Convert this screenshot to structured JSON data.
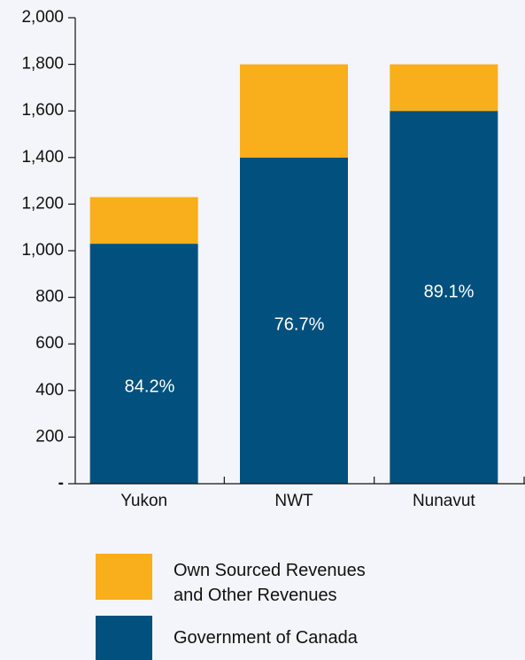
{
  "chart_data": {
    "type": "stacked_bar",
    "categories": [
      "Yukon",
      "NWT",
      "Nunavut"
    ],
    "series": [
      {
        "name": "Government of Canada",
        "color": "#01507e",
        "values": [
          1030,
          1400,
          1600
        ]
      },
      {
        "name": "Own Sourced Revenues and Other Revenues",
        "color": "#f9ae1b",
        "values": [
          200,
          400,
          200
        ]
      }
    ],
    "annotations": [
      "84.2%",
      "76.7%",
      "89.1%"
    ],
    "ylim": [
      0,
      2000
    ],
    "yticks": [
      {
        "value": 0,
        "label": "-"
      },
      200,
      400,
      600,
      800,
      {
        "value": 1000,
        "label": "1,000"
      },
      {
        "value": 1200,
        "label": "1,200"
      },
      {
        "value": 1400,
        "label": "1,400"
      },
      {
        "value": 1600,
        "label": "1,600"
      },
      {
        "value": 1800,
        "label": "1,800"
      },
      {
        "value": 2000,
        "label": "2,000"
      }
    ],
    "grid": false
  }
}
